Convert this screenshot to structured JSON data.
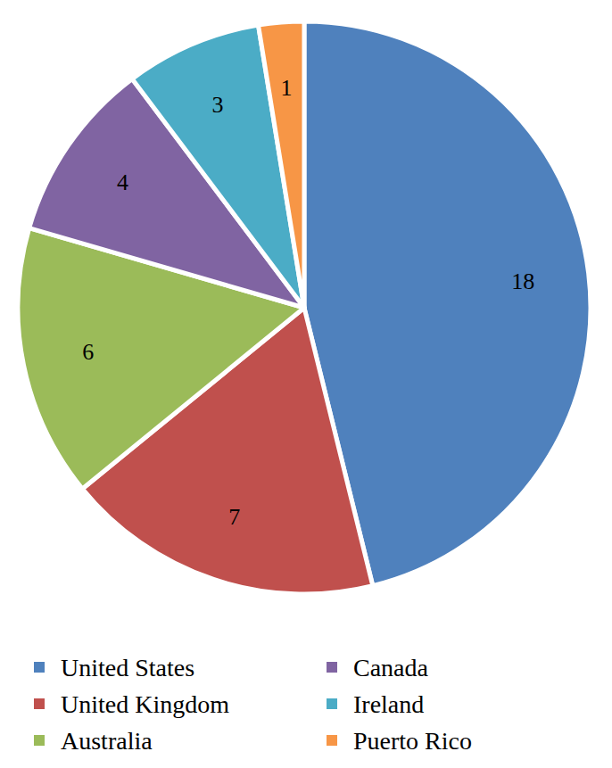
{
  "chart_data": {
    "type": "pie",
    "categories": [
      "United States",
      "United Kingdom",
      "Australia",
      "Canada",
      "Ireland",
      "Puerto Rico"
    ],
    "values": [
      18,
      7,
      6,
      4,
      3,
      1
    ],
    "colors": [
      "#4f81bd",
      "#c0504d",
      "#9bbb59",
      "#8064a2",
      "#4bacc6",
      "#f79646"
    ],
    "data_labels": true,
    "legend": "bottom"
  }
}
